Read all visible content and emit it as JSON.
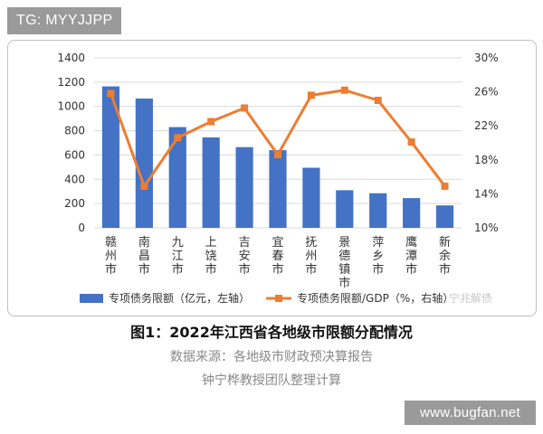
{
  "watermark_tg": "TG: MYYJJPP",
  "watermark_site": "www.bugfan.net",
  "watermark_chart": "宁兆解债",
  "caption": {
    "title": "图1：2022年江西省各地级市限额分配情况",
    "source": "数据来源：各地级市财政预决算报告",
    "author": "钟宁桦教授团队整理计算"
  },
  "colors": {
    "bar": "#4472c4",
    "line": "#ed7d31",
    "grid": "#d9d9d9"
  },
  "chart_data": {
    "type": "bar",
    "categories": [
      "赣州市",
      "南昌市",
      "九江市",
      "上饶市",
      "吉安市",
      "宜春市",
      "抚州市",
      "景德镇市",
      "萍乡市",
      "鹰潭市",
      "新余市"
    ],
    "series": [
      {
        "name": "专项债务限额（亿元，左轴）",
        "type": "bar",
        "axis": "left",
        "values": [
          1165,
          1065,
          830,
          745,
          665,
          640,
          495,
          310,
          285,
          245,
          185
        ]
      },
      {
        "name": "专项债务限额/GDP（%，右轴）",
        "type": "line",
        "axis": "right",
        "values": [
          25.8,
          14.9,
          20.6,
          22.5,
          24.1,
          18.6,
          25.6,
          26.2,
          25.0,
          20.1,
          14.9
        ]
      }
    ],
    "y_left": {
      "range": [
        0,
        1400
      ],
      "ticks": [
        "0",
        "200",
        "400",
        "600",
        "800",
        "1000",
        "1200",
        "1400"
      ]
    },
    "y_right": {
      "range": [
        10,
        30
      ],
      "ticks": [
        "10%",
        "14%",
        "18%",
        "22%",
        "26%",
        "30%"
      ]
    },
    "grid": true,
    "legend": "bottom"
  }
}
